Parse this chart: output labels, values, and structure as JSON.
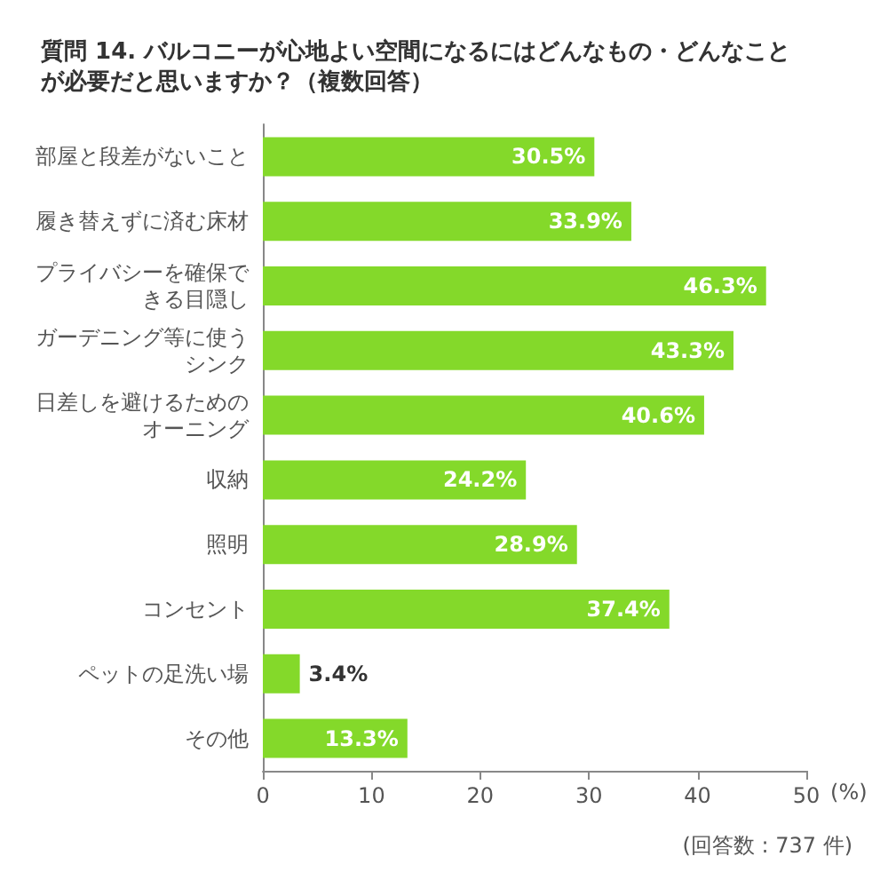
{
  "chart_data": {
    "type": "bar",
    "orientation": "horizontal",
    "title": "質問 14. バルコニーが心地よい空間になるにはどんなもの・どんなことが必要だと思いますか？（複数回答）",
    "categories": [
      "部屋と段差がないこと",
      "履き替えずに済む床材",
      "プライバシーを確保できる目隠し",
      "ガーデニング等に使うシンク",
      "日差しを避けるためのオーニング",
      "収納",
      "照明",
      "コンセント",
      "ペットの足洗い場",
      "その他"
    ],
    "values": [
      30.5,
      33.9,
      46.3,
      43.3,
      40.6,
      24.2,
      28.9,
      37.4,
      3.4,
      13.3
    ],
    "value_labels": [
      "30.5%",
      "33.9%",
      "46.3%",
      "43.3%",
      "40.6%",
      "24.2%",
      "28.9%",
      "37.4%",
      "3.4%",
      "13.3%"
    ],
    "color": "#84d92a",
    "xlim": [
      0,
      50
    ],
    "xticks": [
      0,
      10,
      20,
      30,
      40,
      50
    ],
    "xlabel": "(%)",
    "annotations": [
      "(回答数 : 737 件)"
    ],
    "grid": false
  }
}
